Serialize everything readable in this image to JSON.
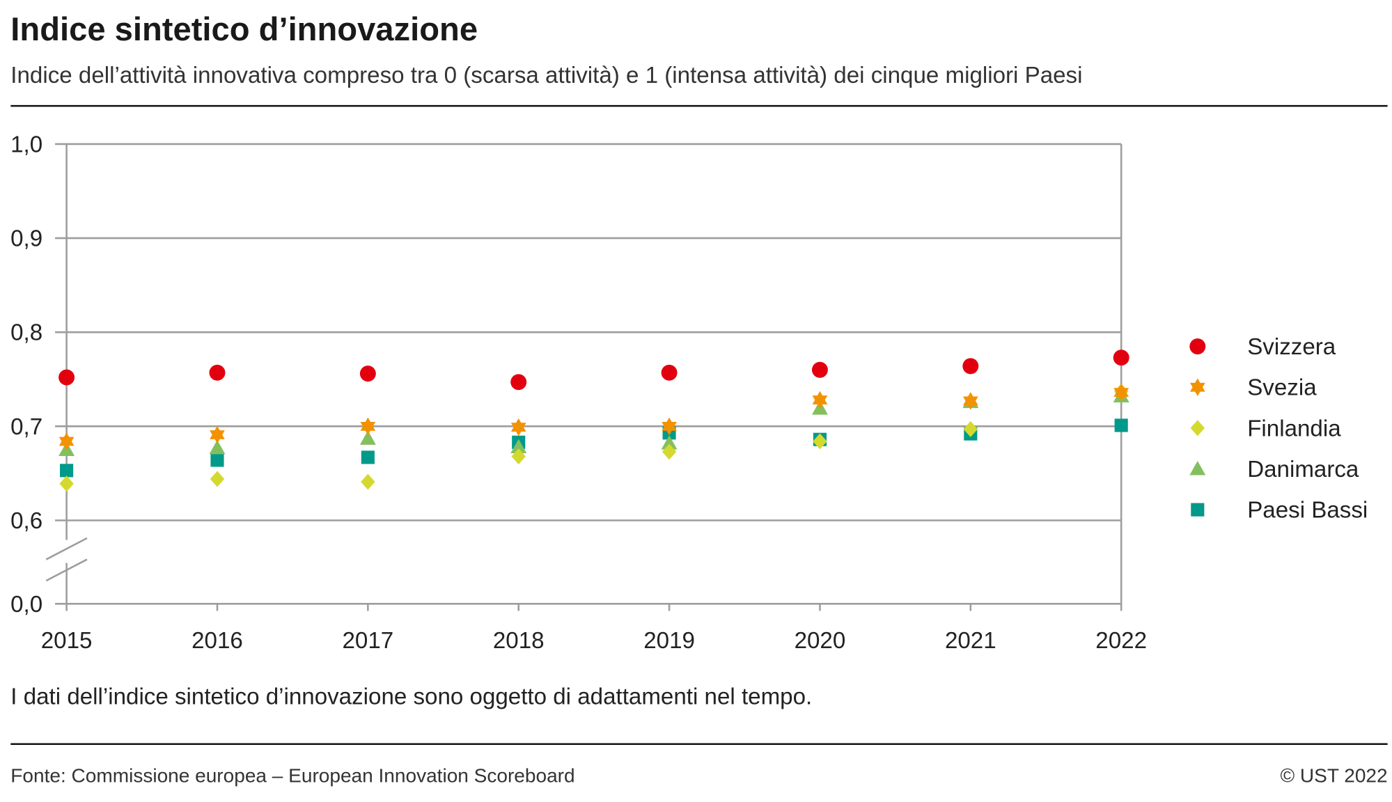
{
  "title": "Indice sintetico d’innovazione",
  "subtitle": "Indice dell’attività innovativa compreso tra 0 (scarsa attività) e 1 (intensa attività) dei cinque migliori Paesi",
  "note": "I dati dell’indice sintetico d’innovazione sono oggetto di adattamenti nel tempo.",
  "source": "Fonte: Commissione europea – European Innovation Scoreboard",
  "copyright": "© UST 2022",
  "chart_data": {
    "type": "scatter",
    "title": "Indice sintetico d’innovazione",
    "x": [
      2015,
      2016,
      2017,
      2018,
      2019,
      2020,
      2021,
      2022
    ],
    "x_tick_labels": [
      "2015",
      "2016",
      "2017",
      "2018",
      "2019",
      "2020",
      "2021",
      "2022"
    ],
    "y_tick_labels": [
      "1,0",
      "0,9",
      "0,8",
      "0,7",
      "0,6",
      "0,0"
    ],
    "y_ticks": [
      1.0,
      0.9,
      0.8,
      0.7,
      0.6,
      0.0
    ],
    "ylim": [
      0,
      1.0
    ],
    "y_axis_break": [
      0.0,
      0.6
    ],
    "grid": "horizontal",
    "legend_position": "right",
    "series": [
      {
        "name": "Svizzera",
        "marker": "circle",
        "color": "#e2000f",
        "values": [
          0.752,
          0.757,
          0.756,
          0.747,
          0.757,
          0.76,
          0.764,
          0.773
        ]
      },
      {
        "name": "Svezia",
        "marker": "star",
        "color": "#f39200",
        "values": [
          0.684,
          0.691,
          0.7,
          0.699,
          0.7,
          0.728,
          0.727,
          0.736
        ]
      },
      {
        "name": "Finlandia",
        "marker": "diamond",
        "color": "#d4d92e",
        "values": [
          0.639,
          0.644,
          0.641,
          0.668,
          0.673,
          0.684,
          0.697,
          0.737
        ]
      },
      {
        "name": "Danimarca",
        "marker": "triangle",
        "color": "#84bf5e",
        "values": [
          0.675,
          0.677,
          0.687,
          0.678,
          0.682,
          0.719,
          0.726,
          0.732
        ]
      },
      {
        "name": "Paesi Bassi",
        "marker": "square",
        "color": "#009a8a",
        "values": [
          0.653,
          0.664,
          0.667,
          0.683,
          0.693,
          0.686,
          0.692,
          0.701
        ]
      }
    ]
  }
}
